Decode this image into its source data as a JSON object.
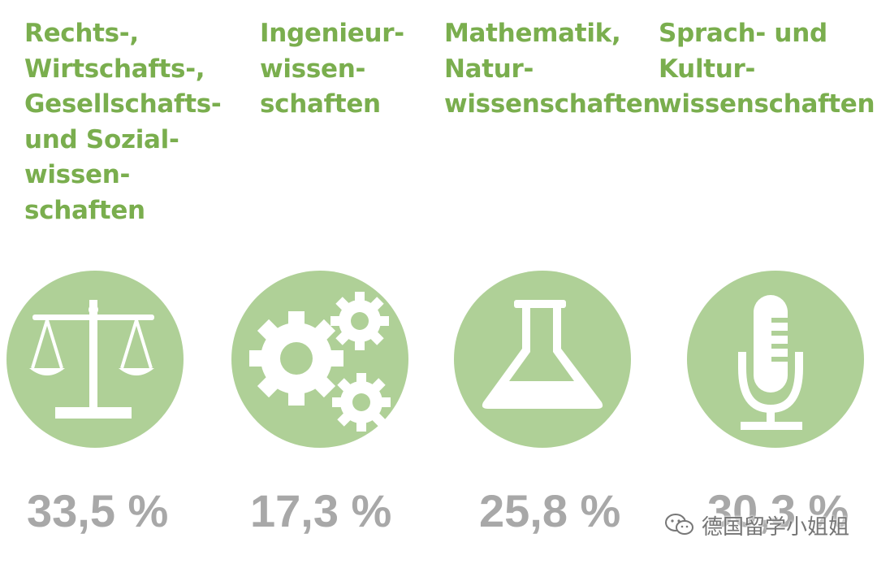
{
  "categories": [
    {
      "title": "Rechts-,\nWirtschafts-,\nGesellschafts-\nund Sozial-\nwissen-\nschaften",
      "percent": "33,5 %",
      "icon": "scales-icon"
    },
    {
      "title": "Ingenieur-\nwissen-\nschaften",
      "percent": "17,3 %",
      "icon": "gears-icon"
    },
    {
      "title": "Mathematik,\nNatur-\nwissenschaften",
      "percent": "25,8 %",
      "icon": "flask-icon"
    },
    {
      "title": "Sprach- und\nKultur-\nwissenschaften",
      "percent": "30,3 %",
      "icon": "microphone-icon"
    }
  ],
  "watermark": {
    "text": "德国留学小姐姐",
    "icon": "wechat-icon"
  },
  "colors": {
    "title_green": "#7aae4e",
    "circle_green": "#afd097",
    "percent_gray": "#a8a8a8",
    "icon_white": "#ffffff"
  }
}
